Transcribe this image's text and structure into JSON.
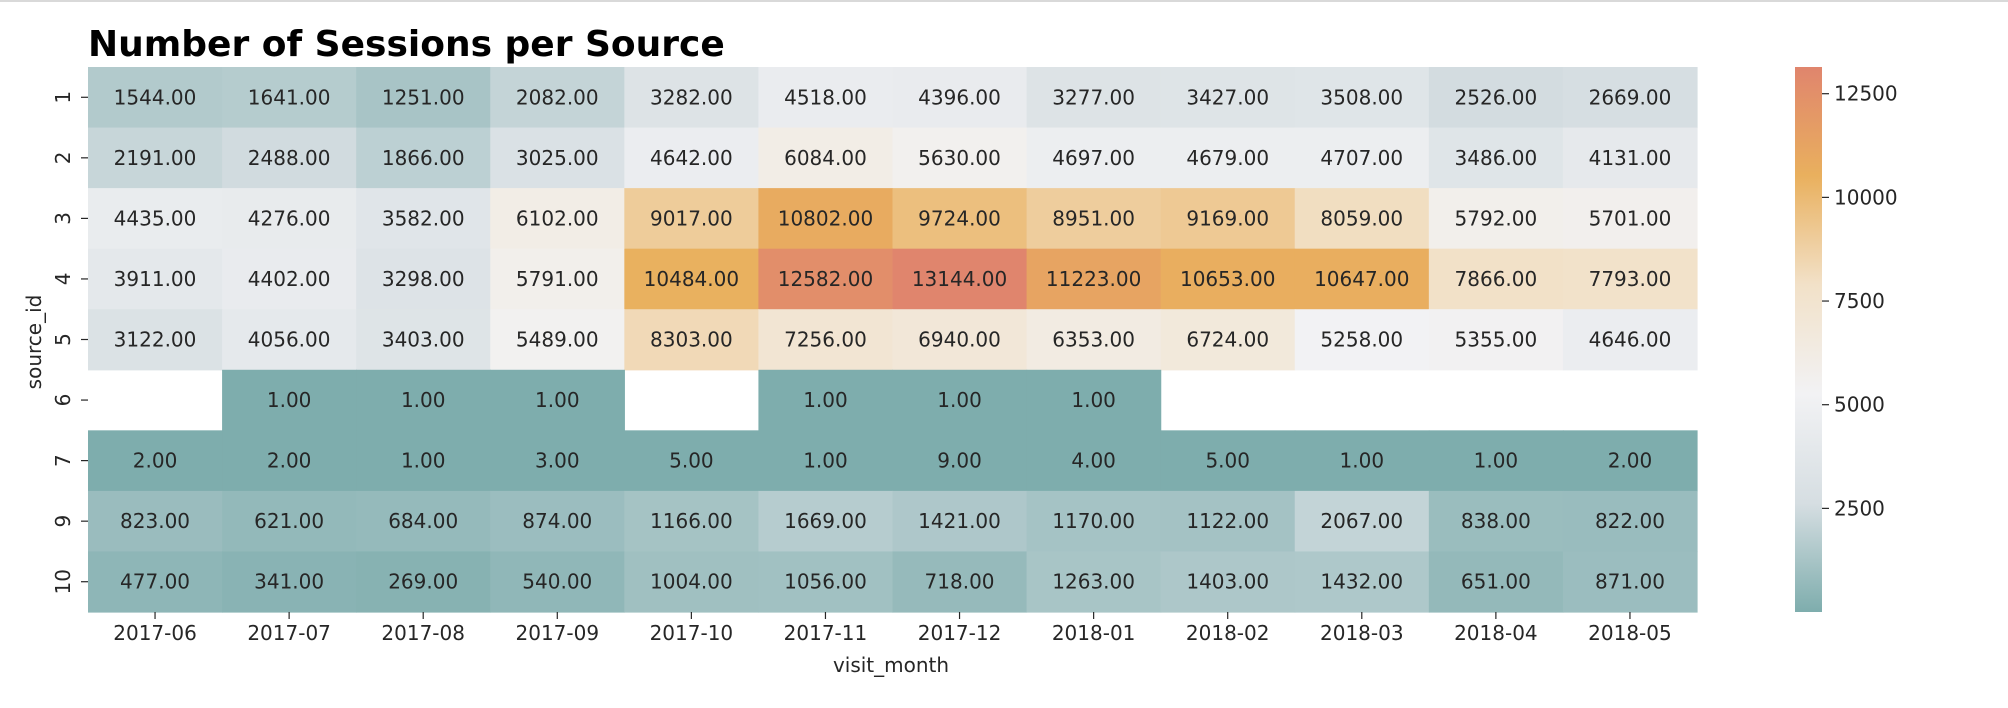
{
  "chart_data": {
    "type": "heatmap",
    "title": "Number of Sessions per Source",
    "xlabel": "visit_month",
    "ylabel": "source_id",
    "x_categories": [
      "2017-06",
      "2017-07",
      "2017-08",
      "2017-09",
      "2017-10",
      "2017-11",
      "2017-12",
      "2018-01",
      "2018-02",
      "2018-03",
      "2018-04",
      "2018-05"
    ],
    "y_categories": [
      "1",
      "2",
      "3",
      "4",
      "5",
      "6",
      "7",
      "9",
      "10"
    ],
    "values": [
      [
        1544.0,
        1641.0,
        1251.0,
        2082.0,
        3282.0,
        4518.0,
        4396.0,
        3277.0,
        3427.0,
        3508.0,
        2526.0,
        2669.0
      ],
      [
        2191.0,
        2488.0,
        1866.0,
        3025.0,
        4642.0,
        6084.0,
        5630.0,
        4697.0,
        4679.0,
        4707.0,
        3486.0,
        4131.0
      ],
      [
        4435.0,
        4276.0,
        3582.0,
        6102.0,
        9017.0,
        10802.0,
        9724.0,
        8951.0,
        9169.0,
        8059.0,
        5792.0,
        5701.0
      ],
      [
        3911.0,
        4402.0,
        3298.0,
        5791.0,
        10484.0,
        12582.0,
        13144.0,
        11223.0,
        10653.0,
        10647.0,
        7866.0,
        7793.0
      ],
      [
        3122.0,
        4056.0,
        3403.0,
        5489.0,
        8303.0,
        7256.0,
        6940.0,
        6353.0,
        6724.0,
        5258.0,
        5355.0,
        4646.0
      ],
      [
        null,
        1.0,
        1.0,
        1.0,
        null,
        1.0,
        1.0,
        1.0,
        null,
        null,
        null,
        null
      ],
      [
        2.0,
        2.0,
        1.0,
        3.0,
        5.0,
        1.0,
        9.0,
        4.0,
        5.0,
        1.0,
        1.0,
        2.0
      ],
      [
        823.0,
        621.0,
        684.0,
        874.0,
        1166.0,
        1669.0,
        1421.0,
        1170.0,
        1122.0,
        2067.0,
        838.0,
        822.0
      ],
      [
        477.0,
        341.0,
        269.0,
        540.0,
        1004.0,
        1056.0,
        718.0,
        1263.0,
        1403.0,
        1432.0,
        651.0,
        871.0
      ]
    ],
    "value_format": "0.00",
    "colorbar": {
      "min": 1,
      "max": 13144,
      "ticks": [
        2500,
        5000,
        7500,
        10000,
        12500
      ],
      "colors": [
        "#7eadad",
        "#d6dee2",
        "#f2f2f4",
        "#f2e1c8",
        "#e9b05e",
        "#e0856d"
      ],
      "placement": "right"
    }
  }
}
